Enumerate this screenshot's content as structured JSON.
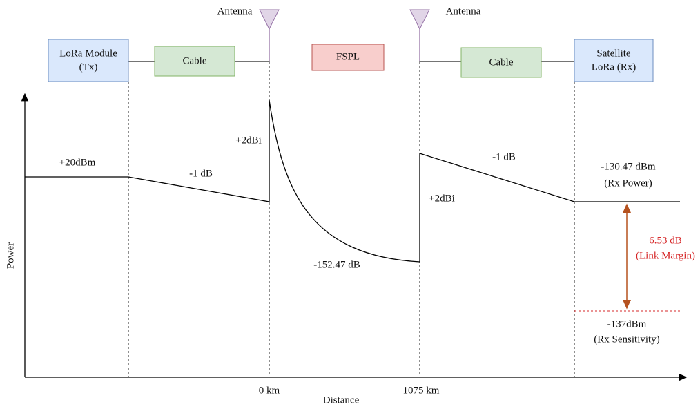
{
  "antennas": [
    "Antenna",
    "Antenna"
  ],
  "blocks": [
    {
      "lines": [
        "LoRa Module",
        "(Tx)"
      ]
    },
    {
      "lines": [
        "Cable"
      ]
    },
    {
      "lines": [
        "FSPL"
      ]
    },
    {
      "lines": [
        "Cable"
      ]
    },
    {
      "lines": [
        "Satellite",
        "LoRa (Rx)"
      ]
    }
  ],
  "annotations": [
    "+20dBm",
    "-1 dB",
    "+2dBi",
    "-152.47 dB",
    "+2dBi",
    "-1 dB"
  ],
  "rx_power": [
    "-130.47 dBm",
    "(Rx Power)"
  ],
  "link_margin": [
    "6.53 dB",
    "(Link Margin)"
  ],
  "rx_sensitivity": [
    "-137dBm",
    "(Rx Sensitivity)"
  ],
  "axis": {
    "y_label": "Power",
    "x_label": "Distance",
    "x_ticks": [
      "0 km",
      "1075 km"
    ]
  }
}
